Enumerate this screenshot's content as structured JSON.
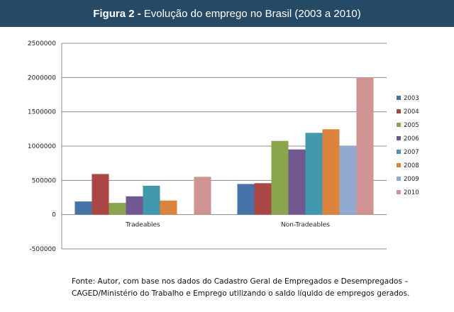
{
  "header": {
    "title_bold": "Figura 2 -",
    "title_rest": "Evolução do emprego no Brasil (2003 a 2010)"
  },
  "source": {
    "line1": "Fonte: Autor, com base nos dados  do Cadastro Geral de Empregados e Desempregados –",
    "line2": "CAGED/Ministério do Trabalho e Emprego utilizando o saldo líquido de empregos gerados."
  },
  "chart_data": {
    "type": "bar",
    "title": "Figura 2 - Evolução do emprego no Brasil (2003 a 2010)",
    "xlabel": "",
    "ylabel": "",
    "categories": [
      "Tradeables",
      "Non-Tradeables"
    ],
    "ylim": [
      -500000,
      2500000
    ],
    "yticks": [
      -500000,
      0,
      500000,
      1000000,
      1500000,
      2000000,
      2500000
    ],
    "ytick_labels": [
      "-500000",
      "0",
      "500000",
      "1000000",
      "1500000",
      "2000000",
      "2500000"
    ],
    "grid": true,
    "legend_position": "right",
    "series": [
      {
        "name": "2003",
        "color": "#4572a7",
        "values": [
          192000,
          447000
        ]
      },
      {
        "name": "2004",
        "color": "#aa4643",
        "values": [
          592000,
          458000
        ]
      },
      {
        "name": "2005",
        "color": "#89a54e",
        "values": [
          171000,
          1075000
        ]
      },
      {
        "name": "2006",
        "color": "#71588f",
        "values": [
          267000,
          951000
        ]
      },
      {
        "name": "2007",
        "color": "#4198af",
        "values": [
          421000,
          1193000
        ]
      },
      {
        "name": "2008",
        "color": "#db843d",
        "values": [
          205000,
          1245000
        ]
      },
      {
        "name": "2009",
        "color": "#93a9cf",
        "values": [
          0,
          1000000
        ]
      },
      {
        "name": "2010",
        "color": "#d19392",
        "values": [
          551000,
          2000000
        ]
      }
    ]
  }
}
